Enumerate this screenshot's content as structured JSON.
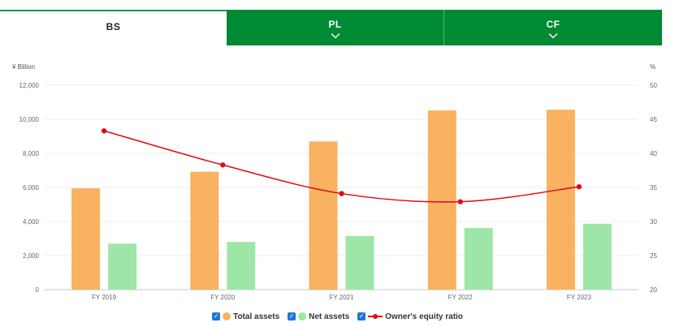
{
  "tabs": [
    {
      "label": "BS",
      "active": true,
      "chevron": false
    },
    {
      "label": "PL",
      "active": false,
      "chevron": true
    },
    {
      "label": "CF",
      "active": false,
      "chevron": true
    }
  ],
  "colors": {
    "tab_green": "#008a34",
    "total_assets": "#f8b261",
    "net_assets": "#9ee6a8",
    "equity_ratio": "#e00a12",
    "checkbox": "#1e74d8"
  },
  "chart_data": {
    "type": "bar",
    "categories": [
      "FY 2019",
      "FY 2020",
      "FY 2021",
      "FY 2022",
      "FY 2023"
    ],
    "left_axis": {
      "unit": "¥ Billion",
      "min": 0,
      "max": 12000,
      "ticks": [
        0,
        2000,
        4000,
        6000,
        8000,
        10000,
        12000
      ]
    },
    "right_axis": {
      "unit": "%",
      "min": 20,
      "max": 50,
      "ticks": [
        20,
        25,
        30,
        35,
        40,
        45,
        50
      ]
    },
    "series": [
      {
        "name": "Total assets",
        "type": "bar",
        "axis": "left",
        "values": [
          5950,
          6920,
          8700,
          10520,
          10560
        ]
      },
      {
        "name": "Net assets",
        "type": "bar",
        "axis": "left",
        "values": [
          2700,
          2800,
          3150,
          3620,
          3870
        ]
      },
      {
        "name": "Owner's equity ratio",
        "type": "line",
        "axis": "right",
        "smooth": true,
        "values": [
          43.3,
          38.3,
          34.1,
          32.9,
          35.1
        ]
      }
    ],
    "grid": true,
    "legend_position": "bottom"
  },
  "legend": {
    "checkbox_mark": "✓",
    "items": [
      "Total assets",
      "Net assets",
      "Owner's equity ratio"
    ]
  }
}
